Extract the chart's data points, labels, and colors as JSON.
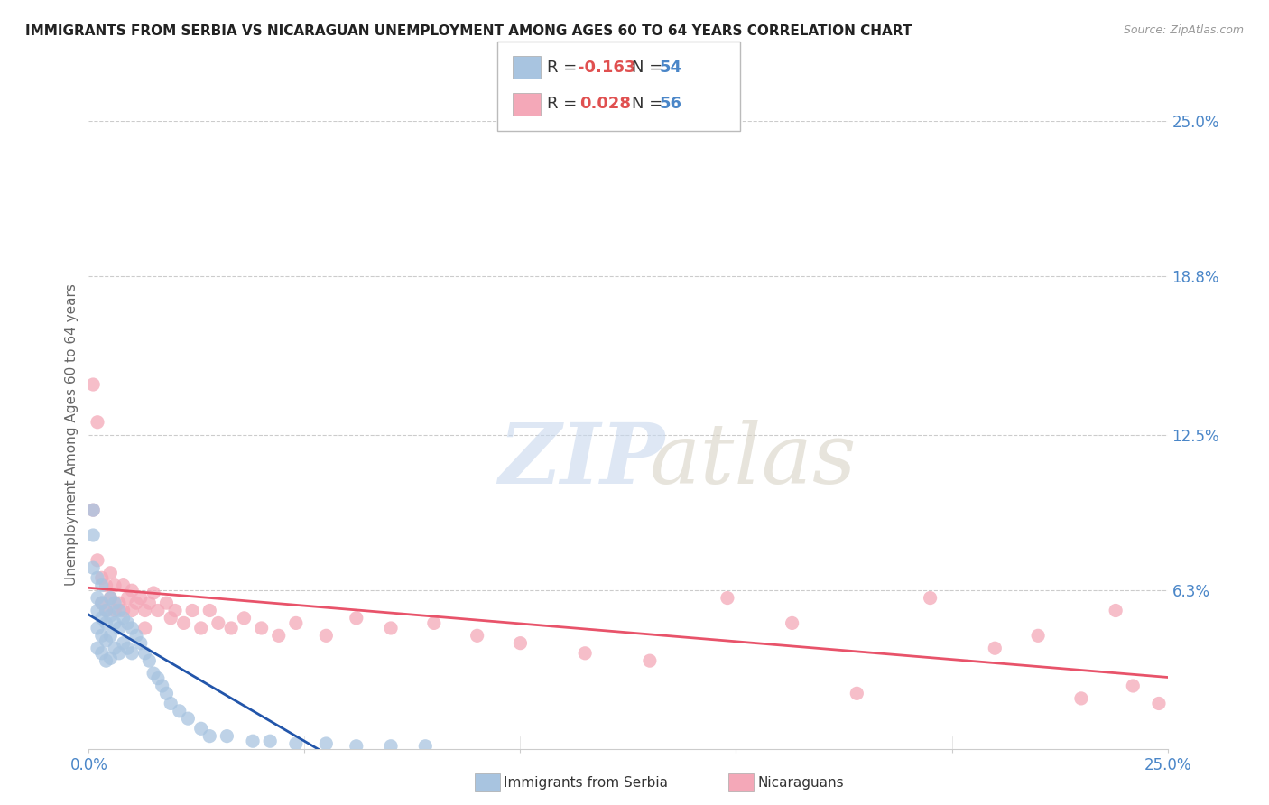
{
  "title": "IMMIGRANTS FROM SERBIA VS NICARAGUAN UNEMPLOYMENT AMONG AGES 60 TO 64 YEARS CORRELATION CHART",
  "source": "Source: ZipAtlas.com",
  "ylabel": "Unemployment Among Ages 60 to 64 years",
  "xlim": [
    0.0,
    0.25
  ],
  "ylim": [
    0.0,
    0.25
  ],
  "yticks": [
    0.0,
    0.063,
    0.125,
    0.188,
    0.25
  ],
  "ytick_labels": [
    "",
    "6.3%",
    "12.5%",
    "18.8%",
    "25.0%"
  ],
  "serbia_color": "#a8c4e0",
  "nicaragua_color": "#f4a8b8",
  "serbia_line_color": "#2255aa",
  "nicaragua_line_color": "#e8536a",
  "grid_color": "#cccccc",
  "title_color": "#222222",
  "axis_label_color": "#666666",
  "tick_label_color": "#4a86c8",
  "legend_r_color": "#e05050",
  "legend_n_color": "#4a86c8",
  "serbia_x": [
    0.001,
    0.001,
    0.001,
    0.002,
    0.002,
    0.002,
    0.002,
    0.002,
    0.003,
    0.003,
    0.003,
    0.003,
    0.003,
    0.004,
    0.004,
    0.004,
    0.004,
    0.005,
    0.005,
    0.005,
    0.005,
    0.006,
    0.006,
    0.006,
    0.007,
    0.007,
    0.007,
    0.008,
    0.008,
    0.009,
    0.009,
    0.01,
    0.01,
    0.011,
    0.012,
    0.013,
    0.014,
    0.015,
    0.016,
    0.017,
    0.018,
    0.019,
    0.021,
    0.023,
    0.026,
    0.028,
    0.032,
    0.038,
    0.042,
    0.048,
    0.055,
    0.062,
    0.07,
    0.078
  ],
  "serbia_y": [
    0.095,
    0.085,
    0.072,
    0.068,
    0.06,
    0.055,
    0.048,
    0.04,
    0.065,
    0.058,
    0.052,
    0.045,
    0.038,
    0.055,
    0.05,
    0.043,
    0.035,
    0.06,
    0.053,
    0.045,
    0.036,
    0.058,
    0.05,
    0.04,
    0.055,
    0.048,
    0.038,
    0.052,
    0.042,
    0.05,
    0.04,
    0.048,
    0.038,
    0.045,
    0.042,
    0.038,
    0.035,
    0.03,
    0.028,
    0.025,
    0.022,
    0.018,
    0.015,
    0.012,
    0.008,
    0.005,
    0.005,
    0.003,
    0.003,
    0.002,
    0.002,
    0.001,
    0.001,
    0.001
  ],
  "nicaragua_x": [
    0.001,
    0.001,
    0.002,
    0.002,
    0.003,
    0.003,
    0.004,
    0.004,
    0.005,
    0.005,
    0.006,
    0.006,
    0.007,
    0.008,
    0.008,
    0.009,
    0.01,
    0.01,
    0.011,
    0.012,
    0.013,
    0.013,
    0.014,
    0.015,
    0.016,
    0.018,
    0.019,
    0.02,
    0.022,
    0.024,
    0.026,
    0.028,
    0.03,
    0.033,
    0.036,
    0.04,
    0.044,
    0.048,
    0.055,
    0.062,
    0.07,
    0.08,
    0.09,
    0.1,
    0.115,
    0.13,
    0.148,
    0.163,
    0.178,
    0.195,
    0.21,
    0.22,
    0.23,
    0.238,
    0.242,
    0.248
  ],
  "nicaragua_y": [
    0.145,
    0.095,
    0.13,
    0.075,
    0.068,
    0.058,
    0.065,
    0.055,
    0.07,
    0.06,
    0.065,
    0.055,
    0.058,
    0.065,
    0.055,
    0.06,
    0.063,
    0.055,
    0.058,
    0.06,
    0.055,
    0.048,
    0.058,
    0.062,
    0.055,
    0.058,
    0.052,
    0.055,
    0.05,
    0.055,
    0.048,
    0.055,
    0.05,
    0.048,
    0.052,
    0.048,
    0.045,
    0.05,
    0.045,
    0.052,
    0.048,
    0.05,
    0.045,
    0.042,
    0.038,
    0.035,
    0.06,
    0.05,
    0.022,
    0.06,
    0.04,
    0.045,
    0.02,
    0.055,
    0.025,
    0.018
  ]
}
